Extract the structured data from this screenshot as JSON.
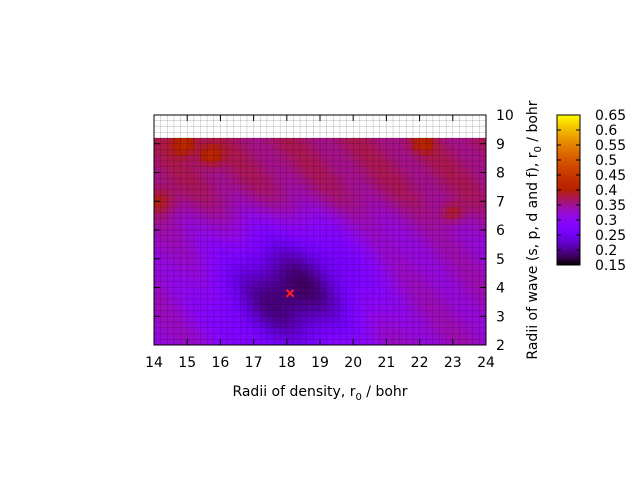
{
  "chart_data": {
    "type": "heatmap",
    "xlabel_main": "Radii of density, r",
    "xlabel_sub": "0",
    "xlabel_unit": " / bohr",
    "ylabel_main": "Radii of wave (s, p, d and f), r",
    "ylabel_sub": "0",
    "ylabel_unit": " / bohr",
    "xlim": [
      14,
      24
    ],
    "ylim": [
      2,
      10
    ],
    "data_ylim": [
      2,
      9.2
    ],
    "x_ticks": [
      "14",
      "15",
      "16",
      "17",
      "18",
      "19",
      "20",
      "21",
      "22",
      "23",
      "24"
    ],
    "y_ticks": [
      "2",
      "3",
      "4",
      "5",
      "6",
      "7",
      "8",
      "9",
      "10"
    ],
    "colorbar": {
      "min": 0.15,
      "max": 0.65,
      "ticks": [
        "0.15",
        "0.2",
        "0.25",
        "0.3",
        "0.35",
        "0.4",
        "0.45",
        "0.5",
        "0.55",
        "0.6",
        "0.65"
      ],
      "palette": "gnuplot"
    },
    "minimum": {
      "x": 18.1,
      "y": 3.8,
      "value": 0.18
    },
    "minimum_marker_color": "#ff2020",
    "grid": true
  }
}
